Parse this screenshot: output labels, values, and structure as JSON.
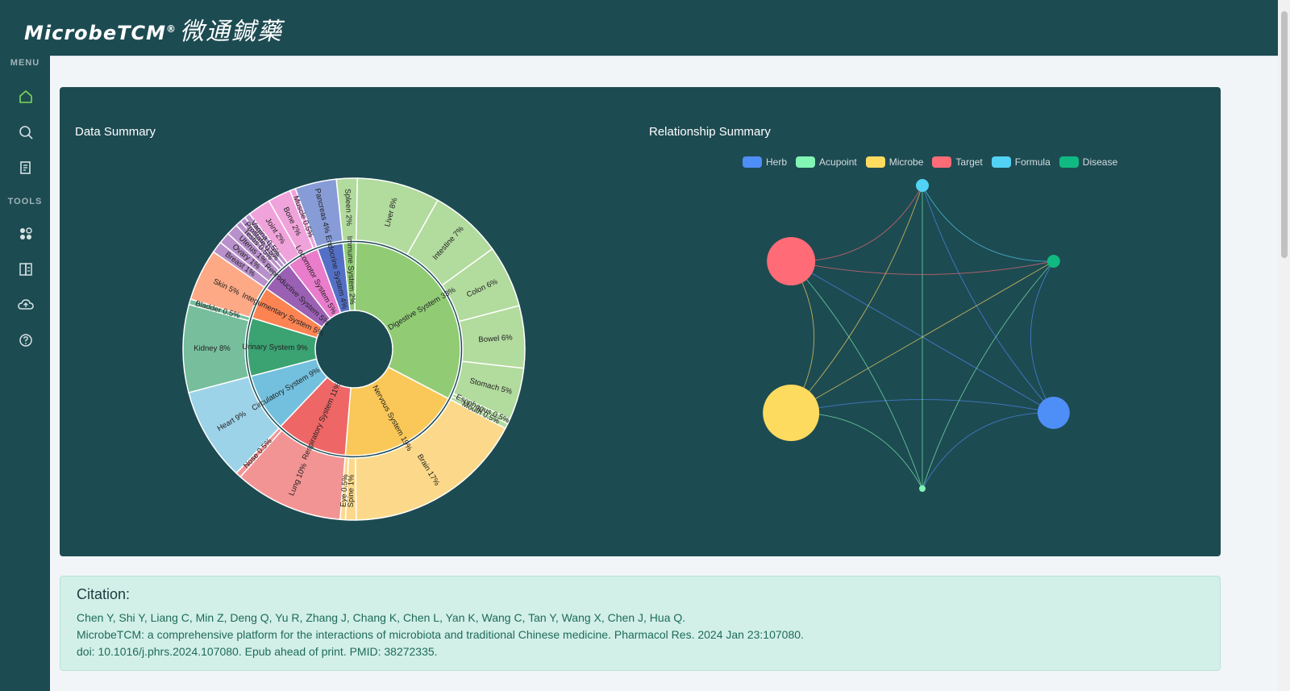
{
  "header": {
    "logo_text": "MicrobeTCM",
    "logo_mark": "®",
    "logo_cn": "微通鍼藥"
  },
  "sidebar": {
    "menu_heading": "MENU",
    "tools_heading": "TOOLS",
    "menu_items": [
      {
        "icon": "home-icon"
      },
      {
        "icon": "search-icon"
      },
      {
        "icon": "document-icon"
      }
    ],
    "tool_items": [
      {
        "icon": "apps-icon"
      },
      {
        "icon": "compare-icon"
      },
      {
        "icon": "cloud-upload-icon"
      },
      {
        "icon": "help-icon"
      }
    ],
    "active_color": "#7ed957"
  },
  "panel": {
    "data_summary_title": "Data Summary",
    "relationship_summary_title": "Relationship Summary"
  },
  "sunburst": {
    "inner": [
      {
        "label": "Digestive System 33%",
        "value": 33,
        "color": "#91cc75"
      },
      {
        "label": "Nervous System 19%",
        "value": 19,
        "color": "#fac858"
      },
      {
        "label": "Respiratory System 11%",
        "value": 11,
        "color": "#ee6666"
      },
      {
        "label": "Circulatory System 9%",
        "value": 9,
        "color": "#73c0de"
      },
      {
        "label": "Urinary System 9%",
        "value": 9,
        "color": "#3ba272"
      },
      {
        "label": "Integumentary System 5%",
        "value": 5,
        "color": "#fc8452"
      },
      {
        "label": "Reproductive System 5%",
        "value": 5,
        "color": "#9a60b4"
      },
      {
        "label": "Locomotor System 5%",
        "value": 5,
        "color": "#ea7ccc"
      },
      {
        "label": "Endocrine System 4%",
        "value": 4,
        "color": "#5470c6"
      },
      {
        "label": "Immune System 2%",
        "value": 2,
        "color": "#91cc75"
      }
    ],
    "outer": [
      {
        "label": "Liver 8%",
        "value": 8,
        "parent": 0
      },
      {
        "label": "Intestine 7%",
        "value": 7,
        "parent": 0
      },
      {
        "label": "Colon 6%",
        "value": 6,
        "parent": 0
      },
      {
        "label": "Bowel 6%",
        "value": 6,
        "parent": 0
      },
      {
        "label": "Stomach 5%",
        "value": 5,
        "parent": 0
      },
      {
        "label": "Esophagus 0.5%",
        "value": 0.5,
        "parent": 0
      },
      {
        "label": "Mouth 0.5%",
        "value": 0.5,
        "parent": 0
      },
      {
        "label": "Brain 17%",
        "value": 17,
        "parent": 1
      },
      {
        "label": "Spine 1%",
        "value": 1,
        "parent": 1
      },
      {
        "label": "Eye 0.5%",
        "value": 0.5,
        "parent": 1
      },
      {
        "label": "Lung 10%",
        "value": 10,
        "parent": 2
      },
      {
        "label": "Nose 0.5%",
        "value": 0.5,
        "parent": 2
      },
      {
        "label": "Heart 9%",
        "value": 9,
        "parent": 3
      },
      {
        "label": "Kidney 8%",
        "value": 8,
        "parent": 4
      },
      {
        "label": "Bladder 0.5%",
        "value": 0.5,
        "parent": 4
      },
      {
        "label": "Skin 5%",
        "value": 5,
        "parent": 5
      },
      {
        "label": "Breast 1%",
        "value": 1,
        "parent": 6
      },
      {
        "label": "Ovary 1%",
        "value": 1,
        "parent": 6
      },
      {
        "label": "Uterus 1%",
        "value": 1,
        "parent": 6
      },
      {
        "label": "Testis 0.5%",
        "value": 0.5,
        "parent": 6
      },
      {
        "label": "Prostate 0.5%",
        "value": 0.5,
        "parent": 6
      },
      {
        "label": "Vagina 0.5%",
        "value": 0.5,
        "parent": 6
      },
      {
        "label": "Joint 2%",
        "value": 2,
        "parent": 7
      },
      {
        "label": "Bone 2%",
        "value": 2,
        "parent": 7
      },
      {
        "label": "Muscle 0.5%",
        "value": 0.5,
        "parent": 7
      },
      {
        "label": "Pancreas 4%",
        "value": 4,
        "parent": 8
      },
      {
        "label": "Spleen 2%",
        "value": 2,
        "parent": 9
      }
    ]
  },
  "graph": {
    "legend": [
      {
        "label": "Herb",
        "color": "#4e8ef7"
      },
      {
        "label": "Acupoint",
        "color": "#82f5b4"
      },
      {
        "label": "Microbe",
        "color": "#fddb5f"
      },
      {
        "label": "Target",
        "color": "#ff6b76"
      },
      {
        "label": "Formula",
        "color": "#52d2f5"
      },
      {
        "label": "Disease",
        "color": "#10b981"
      }
    ],
    "nodes": [
      {
        "name": "Herb",
        "color": "#4e8ef7",
        "weight": 20
      },
      {
        "name": "Acupoint",
        "color": "#82f5b4",
        "weight": 4
      },
      {
        "name": "Microbe",
        "color": "#fddb5f",
        "weight": 35
      },
      {
        "name": "Target",
        "color": "#ff6b76",
        "weight": 30
      },
      {
        "name": "Formula",
        "color": "#52d2f5",
        "weight": 8
      },
      {
        "name": "Disease",
        "color": "#10b981",
        "weight": 8
      }
    ]
  },
  "citation": {
    "title": "Citation:",
    "line1": "Chen Y, Shi Y, Liang C, Min Z, Deng Q, Yu R, Zhang J, Chang K, Chen L, Yan K, Wang C, Tan Y, Wang X, Chen J, Hua Q.",
    "line2": "MicrobeTCM: a comprehensive platform for the interactions of microbiota and traditional Chinese medicine. Pharmacol Res. 2024 Jan 23:107080.",
    "line3": "doi: 10.1016/j.phrs.2024.107080. Epub ahead of print. PMID: 38272335."
  }
}
